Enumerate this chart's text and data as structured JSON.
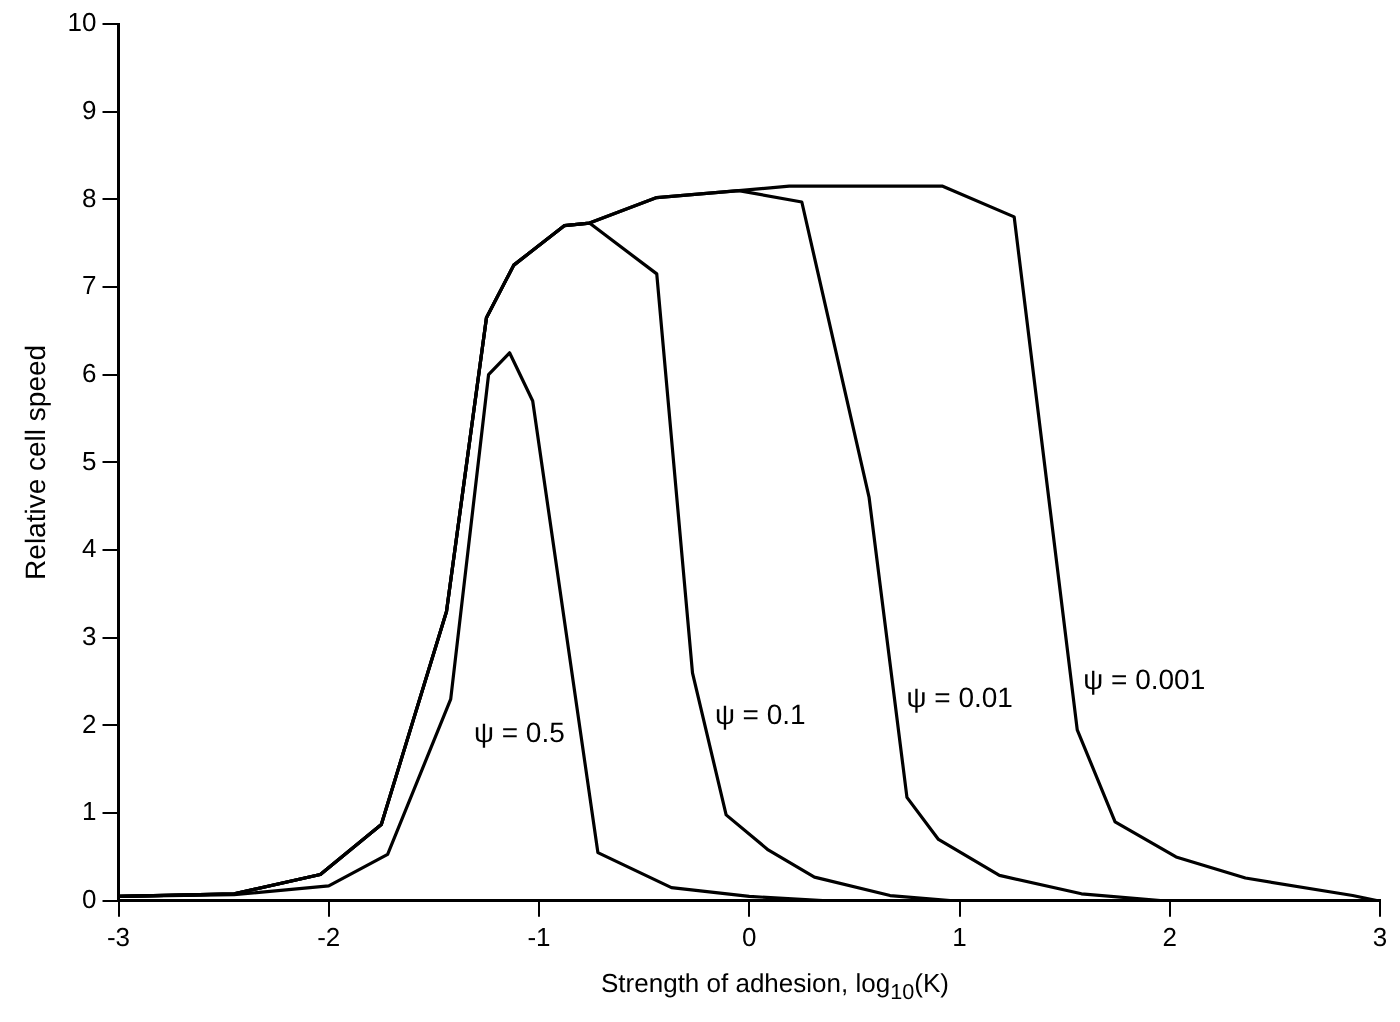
{
  "chart_data": {
    "type": "line",
    "xlabel": "Strength of adhesion, log$_{10}$(K)",
    "ylabel": "Relative cell speed",
    "xlim": [
      -3,
      3
    ],
    "xticks": [
      -3,
      -2,
      -1,
      0,
      1,
      2,
      3
    ],
    "ylim": [
      0,
      10
    ],
    "yticks": [
      0,
      1,
      2,
      3,
      4,
      5,
      6,
      7,
      8,
      9,
      10
    ],
    "grid": false,
    "legend": false,
    "marker": "none",
    "line_style": "solid",
    "series": [
      {
        "name": "ψ = 0.5",
        "color": "#000000",
        "x": [
          -3,
          -2.45,
          -2.0,
          -1.72,
          -1.42,
          -1.24,
          -1.14,
          -1.03,
          -0.72,
          -0.37,
          0,
          0.37
        ],
        "values": [
          0.05,
          0.07,
          0.17,
          0.53,
          2.3,
          6.0,
          6.25,
          5.7,
          0.55,
          0.15,
          0.05,
          0.0
        ]
      },
      {
        "name": "ψ = 0.1",
        "color": "#000000",
        "x": [
          -3,
          -2.45,
          -2.04,
          -1.75,
          -1.44,
          -1.25,
          -1.12,
          -0.88,
          -0.76,
          -0.44,
          -0.27,
          -0.11,
          0.09,
          0.31,
          0.67,
          0.97
        ],
        "values": [
          0.05,
          0.08,
          0.3,
          0.87,
          3.3,
          6.65,
          7.25,
          7.7,
          7.73,
          7.15,
          2.6,
          0.98,
          0.58,
          0.27,
          0.06,
          0.0
        ]
      },
      {
        "name": "ψ = 0.01",
        "color": "#000000",
        "x": [
          -3,
          -2.45,
          -2.04,
          -1.75,
          -1.44,
          -1.25,
          -1.12,
          -0.88,
          -0.76,
          -0.44,
          -0.05,
          0.25,
          0.57,
          0.75,
          0.9,
          1.19,
          1.58,
          1.97
        ],
        "values": [
          0.05,
          0.08,
          0.3,
          0.87,
          3.3,
          6.65,
          7.25,
          7.7,
          7.73,
          8.02,
          8.1,
          7.97,
          4.6,
          1.18,
          0.7,
          0.29,
          0.08,
          0.0
        ]
      },
      {
        "name": "ψ = 0.001",
        "color": "#000000",
        "x": [
          -3,
          -2.45,
          -2.04,
          -1.75,
          -1.44,
          -1.25,
          -1.12,
          -0.88,
          -0.76,
          -0.44,
          -0.05,
          0.19,
          0.92,
          1.26,
          1.56,
          1.74,
          2.03,
          2.36,
          2.87,
          2.99
        ],
        "values": [
          0.05,
          0.08,
          0.3,
          0.87,
          3.3,
          6.65,
          7.25,
          7.7,
          7.73,
          8.02,
          8.1,
          8.15,
          8.15,
          7.8,
          1.95,
          0.9,
          0.5,
          0.26,
          0.06,
          0.0
        ]
      }
    ]
  }
}
